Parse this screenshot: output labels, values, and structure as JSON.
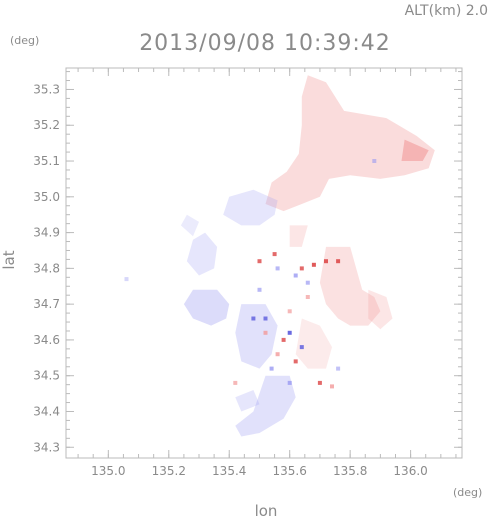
{
  "header": {
    "altitude_label": "ALT(km) 2.0",
    "timestamp": "2013/09/08 10:39:42"
  },
  "chart_data": {
    "type": "heatmap",
    "title": "2013/09/08 10:39:42",
    "xlabel": "lon",
    "ylabel": "lat",
    "x_unit": "(deg)",
    "y_unit": "(deg)",
    "xlim": [
      134.86,
      136.17
    ],
    "ylim": [
      34.27,
      35.36
    ],
    "xticks": [
      135.0,
      135.2,
      135.4,
      135.6,
      135.8,
      136.0
    ],
    "xtick_labels": [
      "135.0",
      "135.2",
      "135.4",
      "135.6",
      "135.8",
      "136.0"
    ],
    "yticks": [
      34.3,
      34.4,
      34.5,
      34.6,
      34.7,
      34.8,
      34.9,
      35.0,
      35.1,
      35.2,
      35.3
    ],
    "ytick_labels": [
      "34.3",
      "34.4",
      "34.5",
      "34.6",
      "34.7",
      "34.8",
      "34.9",
      "35.0",
      "35.1",
      "35.2",
      "35.3"
    ],
    "grid": false,
    "colors": {
      "positive": "#f29a9a",
      "negative": "#9a9af2",
      "strong_positive": "#e05a5a",
      "strong_negative": "#6a6ae0"
    },
    "regions": [
      {
        "sign": "positive",
        "strength": 0.35,
        "points": [
          [
            135.66,
            35.34
          ],
          [
            135.72,
            35.32
          ],
          [
            135.78,
            35.24
          ],
          [
            135.92,
            35.22
          ],
          [
            136.02,
            35.17
          ],
          [
            136.08,
            35.13
          ],
          [
            136.06,
            35.08
          ],
          [
            135.98,
            35.06
          ],
          [
            135.9,
            35.05
          ],
          [
            135.8,
            35.06
          ],
          [
            135.73,
            35.05
          ],
          [
            135.7,
            35.0
          ],
          [
            135.64,
            34.98
          ],
          [
            135.58,
            34.96
          ],
          [
            135.52,
            34.98
          ],
          [
            135.54,
            35.04
          ],
          [
            135.59,
            35.07
          ],
          [
            135.63,
            35.12
          ],
          [
            135.64,
            35.2
          ],
          [
            135.64,
            35.28
          ]
        ]
      },
      {
        "sign": "positive",
        "strength": 0.6,
        "points": [
          [
            135.98,
            35.16
          ],
          [
            136.06,
            35.13
          ],
          [
            136.04,
            35.1
          ],
          [
            135.97,
            35.1
          ]
        ]
      },
      {
        "sign": "positive",
        "strength": 0.3,
        "points": [
          [
            135.72,
            34.86
          ],
          [
            135.8,
            34.86
          ],
          [
            135.82,
            34.8
          ],
          [
            135.84,
            34.74
          ],
          [
            135.88,
            34.72
          ],
          [
            135.9,
            34.68
          ],
          [
            135.86,
            34.64
          ],
          [
            135.8,
            34.64
          ],
          [
            135.76,
            34.66
          ],
          [
            135.72,
            34.7
          ],
          [
            135.7,
            34.76
          ]
        ]
      },
      {
        "sign": "positive",
        "strength": 0.25,
        "points": [
          [
            135.86,
            34.74
          ],
          [
            135.92,
            34.72
          ],
          [
            135.94,
            34.66
          ],
          [
            135.9,
            34.63
          ],
          [
            135.86,
            34.66
          ]
        ]
      },
      {
        "sign": "positive",
        "strength": 0.2,
        "points": [
          [
            135.64,
            34.66
          ],
          [
            135.7,
            34.64
          ],
          [
            135.74,
            34.58
          ],
          [
            135.72,
            34.52
          ],
          [
            135.66,
            34.52
          ],
          [
            135.62,
            34.56
          ]
        ]
      },
      {
        "sign": "negative",
        "strength": 0.25,
        "points": [
          [
            135.4,
            35.0
          ],
          [
            135.48,
            35.02
          ],
          [
            135.56,
            34.99
          ],
          [
            135.55,
            34.95
          ],
          [
            135.5,
            34.92
          ],
          [
            135.44,
            34.92
          ],
          [
            135.38,
            34.95
          ]
        ]
      },
      {
        "sign": "negative",
        "strength": 0.35,
        "points": [
          [
            135.28,
            34.74
          ],
          [
            135.36,
            34.74
          ],
          [
            135.4,
            34.7
          ],
          [
            135.39,
            34.66
          ],
          [
            135.34,
            34.64
          ],
          [
            135.28,
            34.66
          ],
          [
            135.25,
            34.7
          ]
        ]
      },
      {
        "sign": "negative",
        "strength": 0.25,
        "points": [
          [
            135.28,
            34.88
          ],
          [
            135.32,
            34.9
          ],
          [
            135.36,
            34.86
          ],
          [
            135.35,
            34.8
          ],
          [
            135.3,
            34.78
          ],
          [
            135.26,
            34.82
          ]
        ]
      },
      {
        "sign": "negative",
        "strength": 0.3,
        "points": [
          [
            135.44,
            34.7
          ],
          [
            135.52,
            34.7
          ],
          [
            135.56,
            34.64
          ],
          [
            135.54,
            34.56
          ],
          [
            135.5,
            34.52
          ],
          [
            135.44,
            34.54
          ],
          [
            135.42,
            34.62
          ]
        ]
      },
      {
        "sign": "negative",
        "strength": 0.3,
        "points": [
          [
            135.52,
            34.5
          ],
          [
            135.6,
            34.5
          ],
          [
            135.62,
            34.44
          ],
          [
            135.58,
            34.38
          ],
          [
            135.5,
            34.34
          ],
          [
            135.44,
            34.33
          ],
          [
            135.42,
            34.36
          ],
          [
            135.48,
            34.4
          ]
        ]
      },
      {
        "sign": "negative",
        "strength": 0.25,
        "points": [
          [
            135.42,
            34.44
          ],
          [
            135.48,
            34.46
          ],
          [
            135.5,
            34.42
          ],
          [
            135.44,
            34.4
          ]
        ]
      },
      {
        "sign": "negative",
        "strength": 0.2,
        "points": [
          [
            135.24,
            34.92
          ],
          [
            135.26,
            34.95
          ],
          [
            135.3,
            34.93
          ],
          [
            135.28,
            34.89
          ]
        ]
      },
      {
        "sign": "positive",
        "strength": 0.25,
        "points": [
          [
            135.6,
            34.92
          ],
          [
            135.66,
            34.92
          ],
          [
            135.64,
            34.86
          ],
          [
            135.6,
            34.86
          ]
        ]
      }
    ],
    "speckles": [
      {
        "x": 135.5,
        "y": 34.82,
        "sign": "positive",
        "strength": 0.9
      },
      {
        "x": 135.55,
        "y": 34.84,
        "sign": "positive",
        "strength": 0.9
      },
      {
        "x": 135.64,
        "y": 34.8,
        "sign": "positive",
        "strength": 0.9
      },
      {
        "x": 135.68,
        "y": 34.81,
        "sign": "positive",
        "strength": 1.0
      },
      {
        "x": 135.72,
        "y": 34.82,
        "sign": "positive",
        "strength": 1.0
      },
      {
        "x": 135.76,
        "y": 34.82,
        "sign": "positive",
        "strength": 1.0
      },
      {
        "x": 135.52,
        "y": 34.62,
        "sign": "positive",
        "strength": 0.8
      },
      {
        "x": 135.58,
        "y": 34.6,
        "sign": "positive",
        "strength": 0.9
      },
      {
        "x": 135.56,
        "y": 34.56,
        "sign": "positive",
        "strength": 0.8
      },
      {
        "x": 135.62,
        "y": 34.54,
        "sign": "positive",
        "strength": 0.9
      },
      {
        "x": 135.7,
        "y": 34.48,
        "sign": "positive",
        "strength": 0.9
      },
      {
        "x": 135.74,
        "y": 34.47,
        "sign": "positive",
        "strength": 0.8
      },
      {
        "x": 135.6,
        "y": 34.68,
        "sign": "positive",
        "strength": 0.7
      },
      {
        "x": 135.66,
        "y": 34.72,
        "sign": "positive",
        "strength": 0.7
      },
      {
        "x": 135.48,
        "y": 34.66,
        "sign": "negative",
        "strength": 0.9
      },
      {
        "x": 135.52,
        "y": 34.66,
        "sign": "negative",
        "strength": 0.9
      },
      {
        "x": 135.6,
        "y": 34.62,
        "sign": "negative",
        "strength": 1.0
      },
      {
        "x": 135.64,
        "y": 34.58,
        "sign": "negative",
        "strength": 0.9
      },
      {
        "x": 135.54,
        "y": 34.52,
        "sign": "negative",
        "strength": 0.8
      },
      {
        "x": 135.6,
        "y": 34.48,
        "sign": "negative",
        "strength": 0.8
      },
      {
        "x": 135.56,
        "y": 34.8,
        "sign": "negative",
        "strength": 0.7
      },
      {
        "x": 135.62,
        "y": 34.78,
        "sign": "negative",
        "strength": 0.8
      },
      {
        "x": 135.66,
        "y": 34.76,
        "sign": "negative",
        "strength": 0.7
      },
      {
        "x": 135.5,
        "y": 34.74,
        "sign": "negative",
        "strength": 0.7
      },
      {
        "x": 135.06,
        "y": 34.77,
        "sign": "negative",
        "strength": 0.4
      },
      {
        "x": 135.88,
        "y": 35.1,
        "sign": "negative",
        "strength": 0.6
      },
      {
        "x": 135.42,
        "y": 34.48,
        "sign": "positive",
        "strength": 0.7
      },
      {
        "x": 135.76,
        "y": 34.52,
        "sign": "negative",
        "strength": 0.6
      }
    ]
  }
}
